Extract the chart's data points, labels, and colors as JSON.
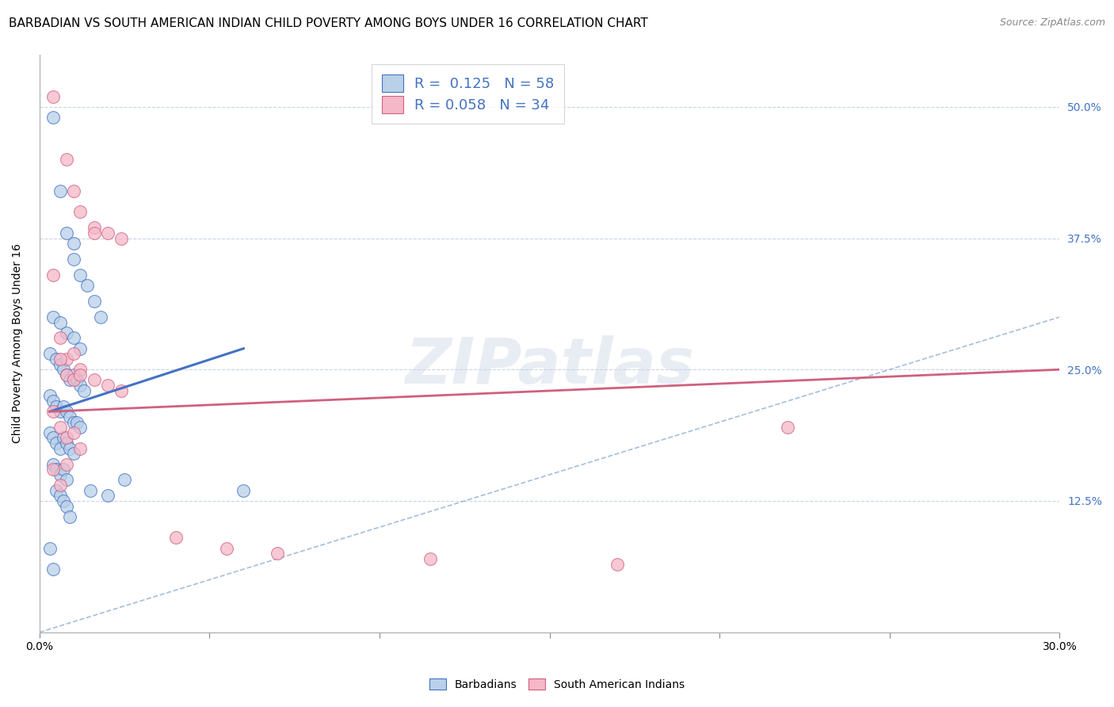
{
  "title": "BARBADIAN VS SOUTH AMERICAN INDIAN CHILD POVERTY AMONG BOYS UNDER 16 CORRELATION CHART",
  "source": "Source: ZipAtlas.com",
  "ylabel": "Child Poverty Among Boys Under 16",
  "xlim": [
    0.0,
    0.3
  ],
  "ylim": [
    0.0,
    0.55
  ],
  "xticks": [
    0.0,
    0.05,
    0.1,
    0.15,
    0.2,
    0.25,
    0.3
  ],
  "xtick_labels": [
    "0.0%",
    "",
    "",
    "",
    "",
    "",
    "30.0%"
  ],
  "ytick_labels": [
    "",
    "12.5%",
    "25.0%",
    "37.5%",
    "50.0%"
  ],
  "yticks": [
    0.0,
    0.125,
    0.25,
    0.375,
    0.5
  ],
  "blue_R": "0.125",
  "blue_N": "58",
  "pink_R": "0.058",
  "pink_N": "34",
  "blue_color": "#b8d0e8",
  "pink_color": "#f5b8c8",
  "blue_line_color": "#4472c4",
  "pink_line_color": "#d06080",
  "diagonal_color": "#9ab8d8",
  "watermark": "ZIPatlas",
  "blue_scatter_x": [
    0.004,
    0.006,
    0.008,
    0.01,
    0.01,
    0.012,
    0.014,
    0.016,
    0.018,
    0.004,
    0.006,
    0.008,
    0.01,
    0.012,
    0.003,
    0.005,
    0.006,
    0.007,
    0.008,
    0.009,
    0.01,
    0.011,
    0.012,
    0.013,
    0.003,
    0.004,
    0.005,
    0.006,
    0.007,
    0.008,
    0.009,
    0.01,
    0.011,
    0.012,
    0.003,
    0.004,
    0.005,
    0.006,
    0.007,
    0.008,
    0.009,
    0.01,
    0.004,
    0.005,
    0.006,
    0.007,
    0.008,
    0.005,
    0.006,
    0.007,
    0.008,
    0.009,
    0.015,
    0.02,
    0.025,
    0.06,
    0.003,
    0.004
  ],
  "blue_scatter_y": [
    0.49,
    0.42,
    0.38,
    0.37,
    0.355,
    0.34,
    0.33,
    0.315,
    0.3,
    0.3,
    0.295,
    0.285,
    0.28,
    0.27,
    0.265,
    0.26,
    0.255,
    0.25,
    0.245,
    0.24,
    0.245,
    0.24,
    0.235,
    0.23,
    0.225,
    0.22,
    0.215,
    0.21,
    0.215,
    0.21,
    0.205,
    0.2,
    0.2,
    0.195,
    0.19,
    0.185,
    0.18,
    0.175,
    0.185,
    0.18,
    0.175,
    0.17,
    0.16,
    0.155,
    0.15,
    0.155,
    0.145,
    0.135,
    0.13,
    0.125,
    0.12,
    0.11,
    0.135,
    0.13,
    0.145,
    0.135,
    0.08,
    0.06
  ],
  "pink_scatter_x": [
    0.004,
    0.008,
    0.01,
    0.012,
    0.016,
    0.02,
    0.024,
    0.004,
    0.006,
    0.008,
    0.01,
    0.012,
    0.016,
    0.006,
    0.008,
    0.01,
    0.012,
    0.016,
    0.02,
    0.024,
    0.004,
    0.006,
    0.008,
    0.01,
    0.012,
    0.004,
    0.006,
    0.008,
    0.04,
    0.055,
    0.07,
    0.115,
    0.17,
    0.22
  ],
  "pink_scatter_y": [
    0.51,
    0.45,
    0.42,
    0.4,
    0.385,
    0.38,
    0.375,
    0.34,
    0.28,
    0.26,
    0.265,
    0.25,
    0.38,
    0.26,
    0.245,
    0.24,
    0.245,
    0.24,
    0.235,
    0.23,
    0.21,
    0.195,
    0.185,
    0.19,
    0.175,
    0.155,
    0.14,
    0.16,
    0.09,
    0.08,
    0.075,
    0.07,
    0.065,
    0.195
  ],
  "blue_trend_x": [
    0.003,
    0.06
  ],
  "blue_trend_y": [
    0.21,
    0.27
  ],
  "pink_trend_x": [
    0.003,
    0.3
  ],
  "pink_trend_y": [
    0.21,
    0.25
  ],
  "title_fontsize": 11,
  "axis_label_fontsize": 10,
  "tick_fontsize": 10,
  "legend_fontsize": 13
}
